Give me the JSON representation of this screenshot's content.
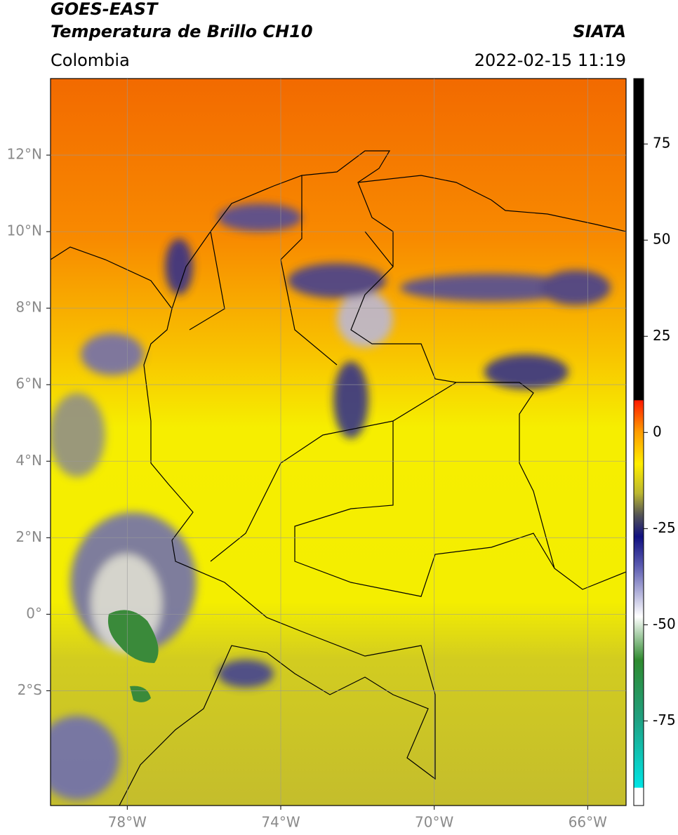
{
  "header": {
    "title_line1": "GOES-EAST",
    "title_line2": "Temperatura de Brillo CH10",
    "source": "SIATA",
    "region": "Colombia",
    "timestamp": "2022-02-15 11:19"
  },
  "map": {
    "xlim": [
      -80,
      -65
    ],
    "ylim": [
      -5,
      14
    ],
    "xticks": [
      {
        "value": -78,
        "label": "78°W"
      },
      {
        "value": -74,
        "label": "74°W"
      },
      {
        "value": -70,
        "label": "70°W"
      },
      {
        "value": -66,
        "label": "66°W"
      }
    ],
    "yticks": [
      {
        "value": 12,
        "label": "12°N"
      },
      {
        "value": 10,
        "label": "10°N"
      },
      {
        "value": 8,
        "label": "8°N"
      },
      {
        "value": 6,
        "label": "6°N"
      },
      {
        "value": 4,
        "label": "4°N"
      },
      {
        "value": 2,
        "label": "2°N"
      },
      {
        "value": 0,
        "label": "0°"
      },
      {
        "value": -2,
        "label": "2°S"
      }
    ]
  },
  "colorbar": {
    "lim": [
      -97,
      92
    ],
    "ticks": [
      75,
      50,
      25,
      0,
      -25,
      -50,
      -75
    ]
  }
}
